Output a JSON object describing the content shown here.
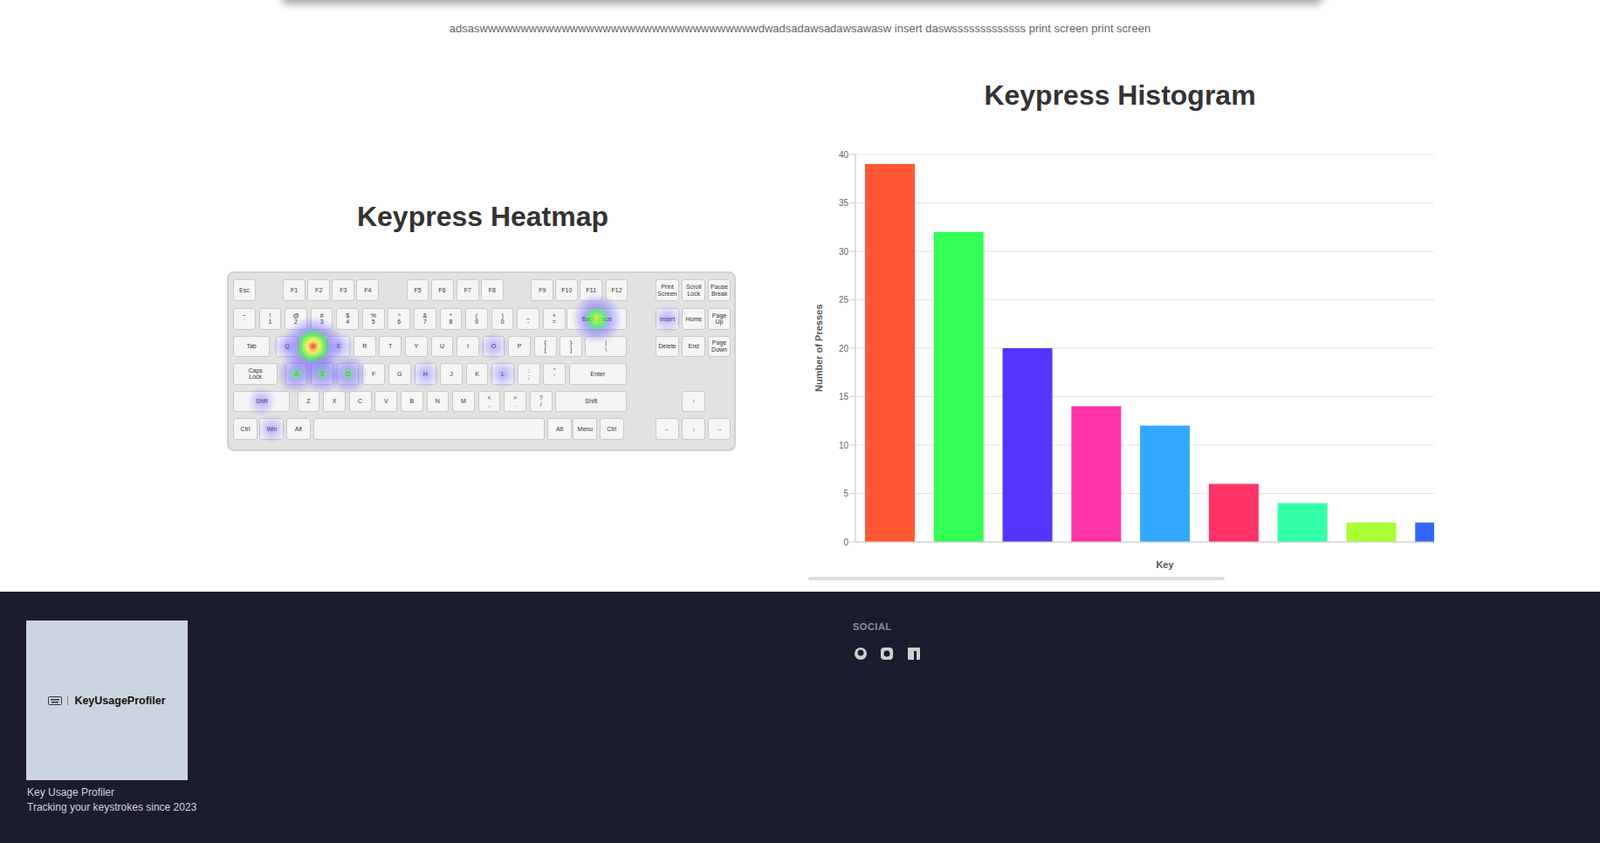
{
  "header_text": "adsaswwwwwwwwwwwwwwwwwwwwwwwwwwwwwwwwwwdwadsadawsadawsawasw insert daswsssssssssssss print screen print screen",
  "heatmap": {
    "title": "Keypress Heatmap",
    "keyboard": [
      [
        "Esc",
        "F1",
        "F2",
        "F3",
        "F4",
        "F5",
        "F6",
        "F7",
        "F8",
        "F9",
        "F10",
        "F11",
        "F12",
        "Print\nScreen",
        "Scroll\nLock",
        "Pause\nBreak"
      ],
      [
        "~\n`",
        "!\n1",
        "@\n2",
        "#\n3",
        "$\n4",
        "%\n5",
        "^\n6",
        "&\n7",
        "*\n8",
        "(\n9",
        ")\n0",
        "_\n-",
        "+\n=",
        "Backspace",
        "Insert",
        "Home",
        "Page\nUp"
      ],
      [
        "Tab",
        "Q",
        "W",
        "E",
        "R",
        "T",
        "Y",
        "U",
        "I",
        "O",
        "P",
        "{\n[",
        "}\n]",
        "|\n\\",
        "Delete",
        "End",
        "Page\nDown"
      ],
      [
        "Caps\nLock",
        "A",
        "S",
        "D",
        "F",
        "G",
        "H",
        "J",
        "K",
        "L",
        ":\n;",
        "\"\n'",
        "Enter"
      ],
      [
        "Shift",
        "Z",
        "X",
        "C",
        "V",
        "B",
        "N",
        "M",
        "<\n,",
        ">\n.",
        "?\n/",
        "Shift",
        "↑"
      ],
      [
        "Ctrl",
        "Win",
        "Alt",
        null,
        "Alt",
        "Menu",
        "Ctrl",
        "←",
        "↓",
        "→"
      ]
    ],
    "heat": [
      {
        "row": 2,
        "col": 2,
        "value": 39
      },
      {
        "row": 1,
        "col": 13,
        "value": 20
      },
      {
        "row": 3,
        "col": 2,
        "value": 14
      },
      {
        "row": 3,
        "col": 1,
        "value": 12
      },
      {
        "row": 3,
        "col": 3,
        "value": 12
      },
      {
        "row": 2,
        "col": 1,
        "value": 4
      },
      {
        "row": 2,
        "col": 3,
        "value": 4
      },
      {
        "row": 1,
        "col": 14,
        "value": 2
      },
      {
        "row": 5,
        "col": 1,
        "value": 2
      },
      {
        "row": 4,
        "col": 0,
        "value": 2
      },
      {
        "row": 2,
        "col": 9,
        "value": 2
      },
      {
        "row": 3,
        "col": 6,
        "value": 2
      },
      {
        "row": 3,
        "col": 9,
        "value": 2
      }
    ]
  },
  "chart_data": {
    "type": "bar",
    "title": "Keypress Histogram",
    "x_label": "Key",
    "y_label": "Number of Presses",
    "categories": [
      null,
      null,
      null,
      null,
      null,
      null,
      null,
      null,
      null
    ],
    "values": [
      39,
      32,
      20,
      14,
      12,
      6,
      4,
      2,
      2
    ],
    "colors": [
      "#ff5733",
      "#33ff57",
      "#5733ff",
      "#ff33a8",
      "#33a8ff",
      "#ff3366",
      "#33ffa8",
      "#a8ff33",
      "#3366ff"
    ],
    "ylim": [
      0,
      40
    ],
    "yticks": [
      0,
      5,
      10,
      15,
      20,
      25,
      30,
      35,
      40
    ],
    "grid": true,
    "tick_labels": "y"
  },
  "footer": {
    "logo": "KeyUsageProfiler",
    "name": "Key Usage Profiler",
    "tagline": "Tracking your keystrokes since 2023",
    "social_heading": "SOCIAL"
  }
}
